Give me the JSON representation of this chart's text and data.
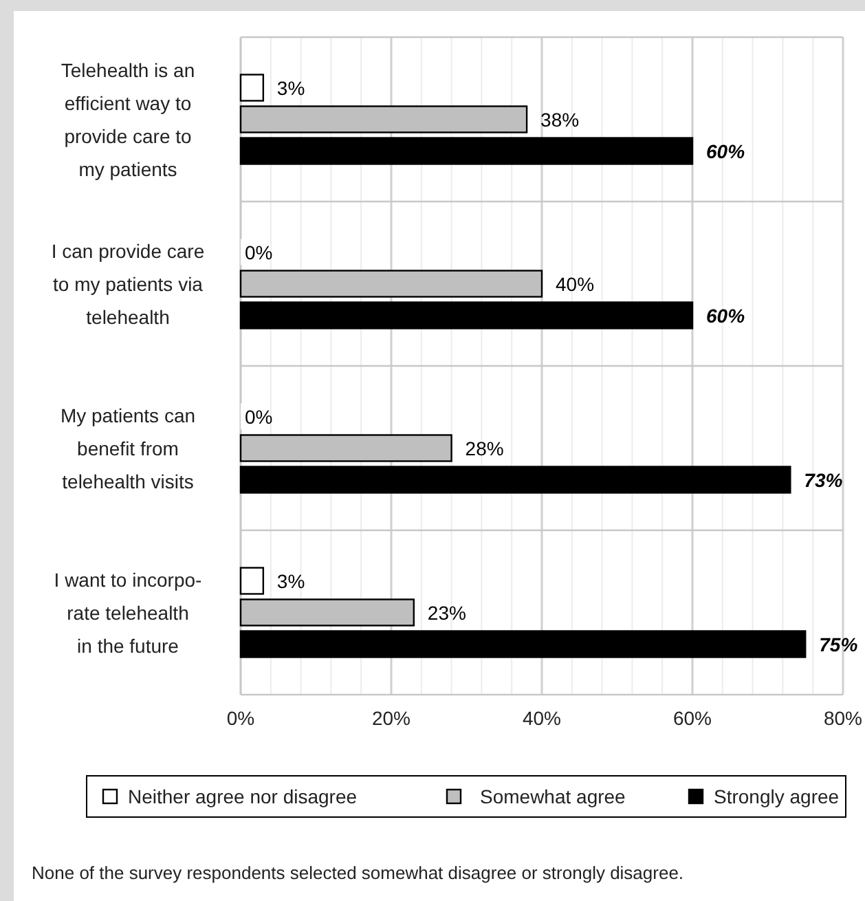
{
  "chart_data": {
    "type": "bar",
    "orientation": "horizontal",
    "categories": [
      "Telehealth is an\nefficient way to\nprovide care to\nmy patients",
      "I can provide care\nto my patients via\ntelehealth",
      "My patients can\nbenefit from\ntelehealth visits",
      "I want to incorpo-\nrate telehealth\nin the future"
    ],
    "series": [
      {
        "name": "Neither agree nor disagree",
        "color": "#ffffff",
        "values": [
          3,
          0,
          0,
          3
        ],
        "value_labels": [
          "3%",
          "0%",
          "0%",
          "3%"
        ]
      },
      {
        "name": "Somewhat agree",
        "color": "#bfbfbf",
        "values": [
          38,
          40,
          28,
          23
        ],
        "value_labels": [
          "38%",
          "40%",
          "28%",
          "23%"
        ]
      },
      {
        "name": "Strongly agree",
        "color": "#000000",
        "values": [
          60,
          60,
          73,
          75
        ],
        "value_labels": [
          "60%",
          "60%",
          "73%",
          "75%"
        ]
      }
    ],
    "xlim": [
      0,
      80
    ],
    "xticks": [
      {
        "value": 0,
        "label": "0%"
      },
      {
        "value": 4,
        "label": null
      },
      {
        "value": 8,
        "label": null
      },
      {
        "value": 12,
        "label": null
      },
      {
        "value": 16,
        "label": null
      },
      {
        "value": 20,
        "label": "20%"
      },
      {
        "value": 24,
        "label": null
      },
      {
        "value": 28,
        "label": null
      },
      {
        "value": 32,
        "label": null
      },
      {
        "value": 36,
        "label": null
      },
      {
        "value": 40,
        "label": "40%"
      },
      {
        "value": 44,
        "label": null
      },
      {
        "value": 48,
        "label": null
      },
      {
        "value": 52,
        "label": null
      },
      {
        "value": 56,
        "label": null
      },
      {
        "value": 60,
        "label": "60%"
      },
      {
        "value": 64,
        "label": null
      },
      {
        "value": 68,
        "label": null
      },
      {
        "value": 72,
        "label": null
      },
      {
        "value": 76,
        "label": null
      },
      {
        "value": 80,
        "label": "80%"
      }
    ],
    "grid": true,
    "legend": "bottom",
    "annotations": [
      "None of the survey respondents selected somewhat disagree or strongly disagree."
    ]
  }
}
